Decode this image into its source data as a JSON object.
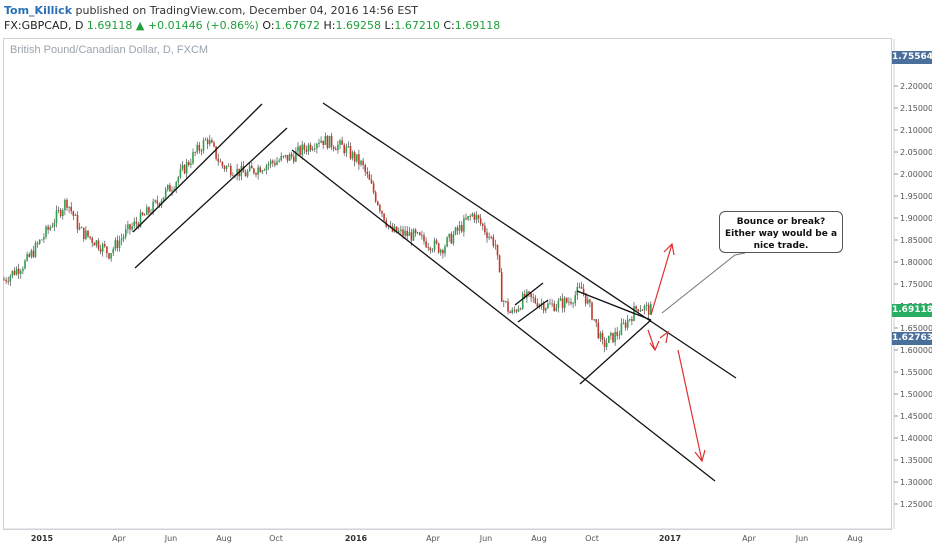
{
  "header": {
    "author": "Tom_Killick",
    "published_text": "published on TradingView.com, December 04, 2016 14:56 EST",
    "symbol": "FX:GBPCAD, D",
    "last": "1.69118",
    "change": "+0.01446 (+0.86%)",
    "o_label": "O:",
    "o_value": "1.67672",
    "h_label": "H:",
    "h_value": "1.69258",
    "l_label": "L:",
    "l_value": "1.67210",
    "c_label": "C:",
    "c_value": "1.69118"
  },
  "chart_data": {
    "type": "candlestick",
    "title": "British Pound/Canadian Dollar, D, FXCM",
    "y_ticks": [
      "2.20000",
      "2.15000",
      "2.10000",
      "2.05000",
      "2.00000",
      "1.95000",
      "1.90000",
      "1.85000",
      "1.80000",
      "1.75000",
      "1.70000",
      "1.65000",
      "1.60000",
      "1.55000",
      "1.50000",
      "1.45000",
      "1.40000",
      "1.35000",
      "1.30000",
      "1.25000"
    ],
    "x_ticks": [
      {
        "label": "2015",
        "year": true
      },
      {
        "label": "Apr",
        "year": false
      },
      {
        "label": "Jun",
        "year": false
      },
      {
        "label": "Aug",
        "year": false
      },
      {
        "label": "Oct",
        "year": false
      },
      {
        "label": "2016",
        "year": true
      },
      {
        "label": "Apr",
        "year": false
      },
      {
        "label": "Jun",
        "year": false
      },
      {
        "label": "Aug",
        "year": false
      },
      {
        "label": "Oct",
        "year": false
      },
      {
        "label": "2017",
        "year": true
      },
      {
        "label": "Apr",
        "year": false
      },
      {
        "label": "Jun",
        "year": false
      },
      {
        "label": "Aug",
        "year": false
      }
    ],
    "price_tags": {
      "top": "1.75564",
      "mid": "1.62763",
      "last": "1.69118"
    },
    "ylim": [
      1.23,
      2.27
    ],
    "series_points": [
      [
        "2015-01-01",
        1.76
      ],
      [
        "2015-01-25",
        1.8
      ],
      [
        "2015-02-20",
        1.88
      ],
      [
        "2015-03-10",
        1.94
      ],
      [
        "2015-03-25",
        1.87
      ],
      [
        "2015-04-15",
        1.84
      ],
      [
        "2015-04-25",
        1.82
      ],
      [
        "2015-05-15",
        1.87
      ],
      [
        "2015-06-10",
        1.92
      ],
      [
        "2015-07-05",
        1.98
      ],
      [
        "2015-07-25",
        2.04
      ],
      [
        "2015-08-10",
        2.08
      ],
      [
        "2015-08-25",
        2.02
      ],
      [
        "2015-09-20",
        2.0
      ],
      [
        "2015-10-10",
        2.02
      ],
      [
        "2015-11-10",
        2.04
      ],
      [
        "2015-12-10",
        2.08
      ],
      [
        "2016-01-05",
        2.06
      ],
      [
        "2016-01-25",
        2.02
      ],
      [
        "2016-02-25",
        1.87
      ],
      [
        "2016-03-20",
        1.86
      ],
      [
        "2016-04-20",
        1.83
      ],
      [
        "2016-05-25",
        1.91
      ],
      [
        "2016-06-18",
        1.84
      ],
      [
        "2016-06-25",
        1.72
      ],
      [
        "2016-07-05",
        1.68
      ],
      [
        "2016-07-20",
        1.72
      ],
      [
        "2016-08-15",
        1.7
      ],
      [
        "2016-09-05",
        1.71
      ],
      [
        "2016-09-20",
        1.74
      ],
      [
        "2016-10-05",
        1.66
      ],
      [
        "2016-10-12",
        1.61
      ],
      [
        "2016-10-30",
        1.64
      ],
      [
        "2016-11-20",
        1.7
      ],
      [
        "2016-12-04",
        1.69
      ]
    ],
    "annotation": "Bounce or break? Either way would be a nice trade."
  }
}
